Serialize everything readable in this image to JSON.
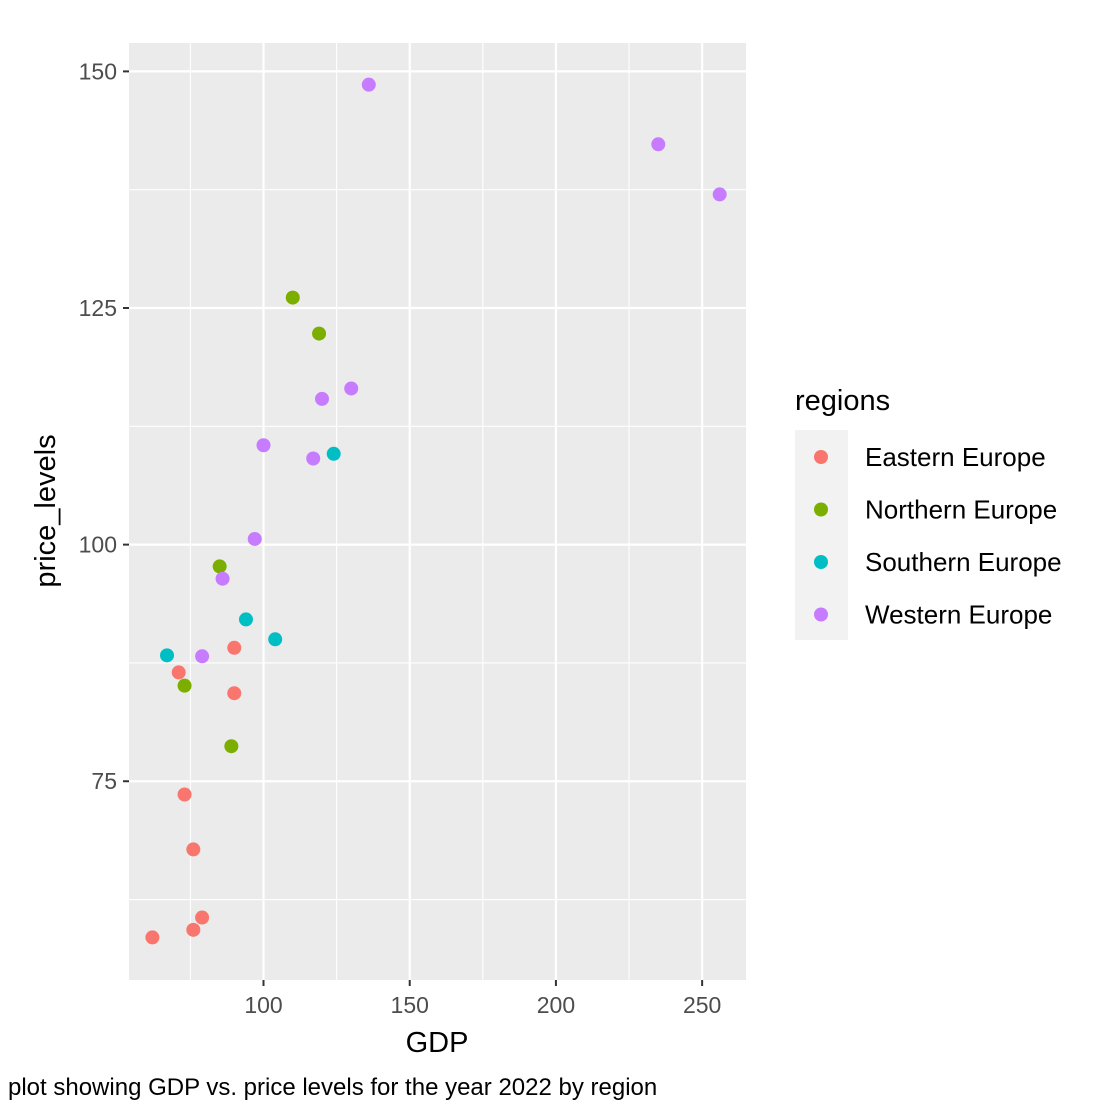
{
  "chart_data": {
    "type": "scatter",
    "title": "",
    "xlabel": "GDP",
    "ylabel": "price_levels",
    "caption": "plot showing GDP vs. price levels for the year 2022 by region",
    "xlim": [
      54,
      265
    ],
    "ylim": [
      54,
      153
    ],
    "x_ticks": [
      100,
      150,
      200,
      250
    ],
    "x_tick_labels": [
      "100",
      "150",
      "200",
      "250"
    ],
    "x_minor_ticks": [
      75,
      125,
      175,
      225
    ],
    "y_ticks": [
      75,
      100,
      125,
      150
    ],
    "y_tick_labels": [
      "75",
      "100",
      "125",
      "150"
    ],
    "y_minor_ticks": [
      62.5,
      87.5,
      112.5,
      137.5
    ],
    "grid": true,
    "legend": {
      "title": "regions",
      "placement": "right"
    },
    "series": [
      {
        "name": "Eastern Europe",
        "color": "#F8766D",
        "points": [
          {
            "x": 62,
            "y": 58.5
          },
          {
            "x": 76,
            "y": 59.3
          },
          {
            "x": 79,
            "y": 60.6
          },
          {
            "x": 76,
            "y": 67.8
          },
          {
            "x": 73,
            "y": 73.6
          },
          {
            "x": 90,
            "y": 84.3
          },
          {
            "x": 71,
            "y": 86.5
          },
          {
            "x": 90,
            "y": 89.1
          }
        ]
      },
      {
        "name": "Northern Europe",
        "color": "#7CAE00",
        "points": [
          {
            "x": 89,
            "y": 78.7
          },
          {
            "x": 73,
            "y": 85.1
          },
          {
            "x": 85,
            "y": 97.7
          },
          {
            "x": 119,
            "y": 122.3
          },
          {
            "x": 110,
            "y": 126.1
          }
        ]
      },
      {
        "name": "Southern Europe",
        "color": "#00BFC4",
        "points": [
          {
            "x": 67,
            "y": 88.3
          },
          {
            "x": 104,
            "y": 90.0
          },
          {
            "x": 94,
            "y": 92.1
          },
          {
            "x": 124,
            "y": 109.6
          }
        ]
      },
      {
        "name": "Western Europe",
        "color": "#C77CFF",
        "points": [
          {
            "x": 79,
            "y": 88.2
          },
          {
            "x": 86,
            "y": 96.4
          },
          {
            "x": 97,
            "y": 100.6
          },
          {
            "x": 117,
            "y": 109.1
          },
          {
            "x": 100,
            "y": 110.5
          },
          {
            "x": 120,
            "y": 115.4
          },
          {
            "x": 130,
            "y": 116.5
          },
          {
            "x": 136,
            "y": 148.6
          },
          {
            "x": 235,
            "y": 142.3
          },
          {
            "x": 256,
            "y": 137.0
          }
        ]
      }
    ],
    "colors": {
      "panel": "#EBEBEB",
      "grid": "#FFFFFF",
      "legend_key": "#F2F2F2"
    }
  }
}
